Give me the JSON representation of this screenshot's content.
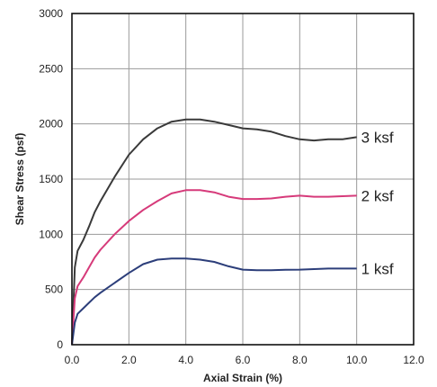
{
  "chart_data": {
    "type": "line",
    "title": "",
    "xlabel": "Axial Strain (%)",
    "ylabel": "Shear Stress (psf)",
    "xlim": [
      0,
      12
    ],
    "ylim": [
      0,
      3000
    ],
    "x_ticks": [
      "0.0",
      "2.0",
      "4.0",
      "6.0",
      "8.0",
      "10.0",
      "12.0"
    ],
    "y_ticks": [
      "0",
      "500",
      "1000",
      "1500",
      "2000",
      "2500",
      "3000"
    ],
    "grid": true,
    "legend": "labels at line ends (right)",
    "series": [
      {
        "name": "3 ksf",
        "color": "#3a3a3a",
        "x": [
          0,
          0.1,
          0.2,
          0.4,
          0.6,
          0.8,
          1.0,
          1.5,
          2.0,
          2.5,
          3.0,
          3.5,
          4.0,
          4.5,
          5.0,
          5.5,
          6.0,
          6.5,
          7.0,
          7.5,
          8.0,
          8.5,
          9.0,
          9.5,
          10.0
        ],
        "y": [
          0,
          700,
          850,
          950,
          1070,
          1200,
          1300,
          1520,
          1720,
          1860,
          1960,
          2020,
          2040,
          2040,
          2020,
          1990,
          1960,
          1950,
          1930,
          1890,
          1860,
          1850,
          1860,
          1860,
          1880
        ]
      },
      {
        "name": "2 ksf",
        "color": "#d63a7a",
        "x": [
          0,
          0.1,
          0.2,
          0.4,
          0.6,
          0.8,
          1.0,
          1.5,
          2.0,
          2.5,
          3.0,
          3.5,
          4.0,
          4.5,
          5.0,
          5.5,
          6.0,
          6.5,
          7.0,
          7.5,
          8.0,
          8.5,
          9.0,
          9.5,
          10.0
        ],
        "y": [
          0,
          420,
          530,
          610,
          700,
          790,
          860,
          1000,
          1120,
          1220,
          1300,
          1370,
          1400,
          1400,
          1380,
          1340,
          1320,
          1320,
          1325,
          1340,
          1350,
          1340,
          1340,
          1345,
          1350
        ]
      },
      {
        "name": "1 ksf",
        "color": "#2c3e7a",
        "x": [
          0,
          0.1,
          0.2,
          0.4,
          0.6,
          0.8,
          1.0,
          1.5,
          2.0,
          2.5,
          3.0,
          3.5,
          4.0,
          4.5,
          5.0,
          5.5,
          6.0,
          6.5,
          7.0,
          7.5,
          8.0,
          8.5,
          9.0,
          9.5,
          10.0
        ],
        "y": [
          0,
          200,
          280,
          330,
          380,
          430,
          470,
          560,
          650,
          730,
          770,
          780,
          780,
          770,
          750,
          710,
          680,
          675,
          675,
          678,
          680,
          685,
          690,
          690,
          690
        ]
      }
    ]
  }
}
